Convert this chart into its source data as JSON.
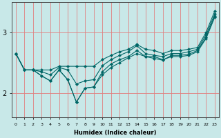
{
  "xlabel": "Humidex (Indice chaleur)",
  "background_color": "#c8e8e8",
  "line_color": "#006666",
  "grid_color": "#e08080",
  "x": [
    0,
    1,
    2,
    3,
    4,
    5,
    6,
    7,
    8,
    9,
    10,
    11,
    12,
    13,
    14,
    15,
    16,
    17,
    18,
    19,
    20,
    21,
    22,
    23
  ],
  "line_max": [
    2.65,
    2.38,
    2.38,
    2.38,
    2.38,
    2.44,
    2.44,
    2.44,
    2.44,
    2.44,
    2.55,
    2.62,
    2.68,
    2.72,
    2.8,
    2.72,
    2.7,
    2.65,
    2.7,
    2.7,
    2.72,
    2.75,
    3.0,
    3.35
  ],
  "line_p75": [
    2.65,
    2.38,
    2.38,
    2.35,
    2.3,
    2.42,
    2.38,
    2.15,
    2.2,
    2.22,
    2.45,
    2.55,
    2.62,
    2.68,
    2.78,
    2.65,
    2.62,
    2.6,
    2.65,
    2.65,
    2.68,
    2.72,
    2.96,
    3.3
  ],
  "line_mean": [
    2.65,
    2.38,
    2.38,
    2.28,
    2.2,
    2.38,
    2.22,
    1.85,
    2.08,
    2.1,
    2.35,
    2.48,
    2.55,
    2.6,
    2.7,
    2.6,
    2.57,
    2.54,
    2.62,
    2.62,
    2.64,
    2.7,
    2.92,
    3.27
  ],
  "line_trend": [
    2.65,
    2.38,
    2.38,
    2.28,
    2.2,
    2.38,
    2.22,
    1.85,
    2.08,
    2.1,
    2.3,
    2.42,
    2.5,
    2.58,
    2.65,
    2.6,
    2.6,
    2.55,
    2.6,
    2.6,
    2.62,
    2.68,
    2.9,
    3.25
  ],
  "ylim": [
    1.6,
    3.5
  ],
  "yticks": [
    2.0,
    3.0
  ],
  "xlim": [
    -0.5,
    23.5
  ],
  "figsize": [
    3.2,
    2.0
  ],
  "dpi": 100
}
